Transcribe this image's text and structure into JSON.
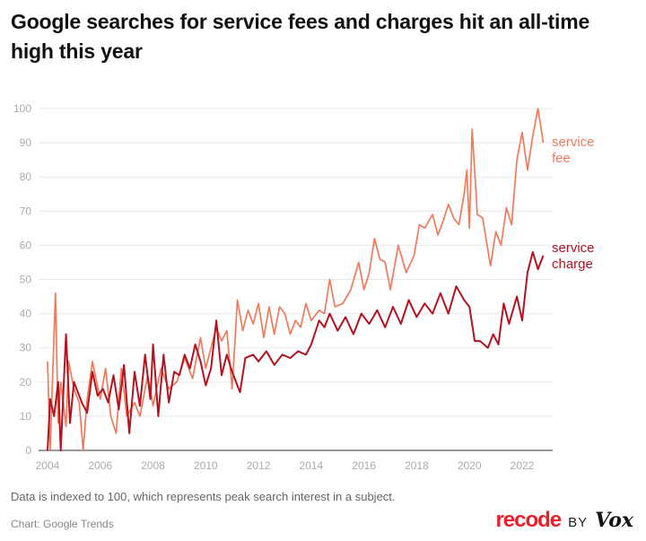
{
  "chart_data": {
    "type": "line",
    "title": "Google searches for service fees and charges hit an all-time high this year",
    "xlabel": "",
    "ylabel": "",
    "xlim": [
      2004,
      2022.8
    ],
    "ylim": [
      0,
      100
    ],
    "x_ticks": [
      "2004",
      "2006",
      "2008",
      "2010",
      "2012",
      "2014",
      "2016",
      "2018",
      "2020",
      "2022"
    ],
    "y_ticks": [
      "0",
      "10",
      "20",
      "30",
      "40",
      "50",
      "60",
      "70",
      "80",
      "90",
      "100"
    ],
    "grid": true,
    "legend": "direct labels at line ends (right)",
    "series": [
      {
        "name": "service fee",
        "label_lines": [
          "service",
          "fee"
        ],
        "color": "#f07a5c",
        "points": [
          [
            2004.0,
            26
          ],
          [
            2004.1,
            0
          ],
          [
            2004.3,
            46
          ],
          [
            2004.4,
            8
          ],
          [
            2004.5,
            20
          ],
          [
            2004.7,
            7
          ],
          [
            2004.8,
            26
          ],
          [
            2005.0,
            18
          ],
          [
            2005.2,
            14
          ],
          [
            2005.35,
            0
          ],
          [
            2005.5,
            15
          ],
          [
            2005.7,
            26
          ],
          [
            2006.0,
            15
          ],
          [
            2006.2,
            24
          ],
          [
            2006.4,
            10
          ],
          [
            2006.6,
            5
          ],
          [
            2006.8,
            24
          ],
          [
            2007.0,
            10
          ],
          [
            2007.3,
            14
          ],
          [
            2007.5,
            10
          ],
          [
            2007.8,
            22
          ],
          [
            2008.0,
            13
          ],
          [
            2008.3,
            24
          ],
          [
            2008.6,
            18
          ],
          [
            2008.9,
            20
          ],
          [
            2009.2,
            27
          ],
          [
            2009.5,
            21
          ],
          [
            2009.8,
            33
          ],
          [
            2010.0,
            24
          ],
          [
            2010.2,
            30
          ],
          [
            2010.4,
            36
          ],
          [
            2010.6,
            32
          ],
          [
            2010.8,
            35
          ],
          [
            2011.0,
            18
          ],
          [
            2011.2,
            44
          ],
          [
            2011.4,
            35
          ],
          [
            2011.6,
            41
          ],
          [
            2011.8,
            37
          ],
          [
            2012.0,
            43
          ],
          [
            2012.2,
            33
          ],
          [
            2012.4,
            42
          ],
          [
            2012.6,
            34
          ],
          [
            2012.8,
            42
          ],
          [
            2013.0,
            40
          ],
          [
            2013.2,
            34
          ],
          [
            2013.4,
            38
          ],
          [
            2013.6,
            36
          ],
          [
            2013.8,
            43
          ],
          [
            2014.0,
            38
          ],
          [
            2014.3,
            41
          ],
          [
            2014.5,
            40
          ],
          [
            2014.7,
            50
          ],
          [
            2014.9,
            42
          ],
          [
            2015.2,
            43
          ],
          [
            2015.5,
            47
          ],
          [
            2015.8,
            55
          ],
          [
            2016.0,
            47
          ],
          [
            2016.2,
            52
          ],
          [
            2016.4,
            62
          ],
          [
            2016.6,
            56
          ],
          [
            2016.8,
            55
          ],
          [
            2017.0,
            47
          ],
          [
            2017.3,
            60
          ],
          [
            2017.6,
            52
          ],
          [
            2017.9,
            57
          ],
          [
            2018.1,
            66
          ],
          [
            2018.3,
            65
          ],
          [
            2018.6,
            69
          ],
          [
            2018.8,
            63
          ],
          [
            2019.0,
            67
          ],
          [
            2019.2,
            72
          ],
          [
            2019.4,
            68
          ],
          [
            2019.6,
            66
          ],
          [
            2019.8,
            75
          ],
          [
            2019.9,
            82
          ],
          [
            2020.0,
            65
          ],
          [
            2020.1,
            94
          ],
          [
            2020.3,
            69
          ],
          [
            2020.5,
            68
          ],
          [
            2020.8,
            54
          ],
          [
            2021.0,
            64
          ],
          [
            2021.2,
            60
          ],
          [
            2021.4,
            71
          ],
          [
            2021.6,
            66
          ],
          [
            2021.8,
            85
          ],
          [
            2022.0,
            93
          ],
          [
            2022.2,
            82
          ],
          [
            2022.4,
            92
          ],
          [
            2022.6,
            100
          ],
          [
            2022.8,
            90
          ]
        ]
      },
      {
        "name": "service charge",
        "label_lines": [
          "service",
          "charge"
        ],
        "color": "#b3121f",
        "points": [
          [
            2004.0,
            0
          ],
          [
            2004.1,
            15
          ],
          [
            2004.25,
            10
          ],
          [
            2004.4,
            20
          ],
          [
            2004.5,
            0
          ],
          [
            2004.7,
            34
          ],
          [
            2004.85,
            8
          ],
          [
            2005.0,
            20
          ],
          [
            2005.3,
            14
          ],
          [
            2005.5,
            11
          ],
          [
            2005.7,
            23
          ],
          [
            2005.9,
            16
          ],
          [
            2006.1,
            18
          ],
          [
            2006.3,
            14
          ],
          [
            2006.5,
            22
          ],
          [
            2006.7,
            12
          ],
          [
            2006.9,
            25
          ],
          [
            2007.1,
            5
          ],
          [
            2007.3,
            23
          ],
          [
            2007.5,
            13
          ],
          [
            2007.7,
            28
          ],
          [
            2007.9,
            15
          ],
          [
            2008.0,
            31
          ],
          [
            2008.2,
            10
          ],
          [
            2008.4,
            28
          ],
          [
            2008.6,
            14
          ],
          [
            2008.8,
            23
          ],
          [
            2009.0,
            22
          ],
          [
            2009.2,
            28
          ],
          [
            2009.4,
            24
          ],
          [
            2009.6,
            31
          ],
          [
            2009.8,
            26
          ],
          [
            2010.0,
            19
          ],
          [
            2010.2,
            24
          ],
          [
            2010.4,
            38
          ],
          [
            2010.6,
            22
          ],
          [
            2010.8,
            28
          ],
          [
            2011.0,
            23
          ],
          [
            2011.3,
            17
          ],
          [
            2011.5,
            27
          ],
          [
            2011.8,
            28
          ],
          [
            2012.0,
            26
          ],
          [
            2012.3,
            29
          ],
          [
            2012.6,
            25
          ],
          [
            2012.9,
            28
          ],
          [
            2013.2,
            27
          ],
          [
            2013.5,
            29
          ],
          [
            2013.8,
            28
          ],
          [
            2014.0,
            31
          ],
          [
            2014.3,
            38
          ],
          [
            2014.5,
            36
          ],
          [
            2014.7,
            40
          ],
          [
            2015.0,
            35
          ],
          [
            2015.3,
            39
          ],
          [
            2015.6,
            34
          ],
          [
            2015.9,
            40
          ],
          [
            2016.2,
            37
          ],
          [
            2016.5,
            41
          ],
          [
            2016.8,
            36
          ],
          [
            2017.1,
            42
          ],
          [
            2017.4,
            37
          ],
          [
            2017.7,
            44
          ],
          [
            2018.0,
            39
          ],
          [
            2018.3,
            43
          ],
          [
            2018.6,
            40
          ],
          [
            2018.9,
            46
          ],
          [
            2019.2,
            40
          ],
          [
            2019.5,
            48
          ],
          [
            2019.8,
            44
          ],
          [
            2020.0,
            42
          ],
          [
            2020.2,
            32
          ],
          [
            2020.4,
            32
          ],
          [
            2020.7,
            30
          ],
          [
            2020.9,
            34
          ],
          [
            2021.1,
            31
          ],
          [
            2021.3,
            43
          ],
          [
            2021.5,
            37
          ],
          [
            2021.8,
            45
          ],
          [
            2022.0,
            38
          ],
          [
            2022.2,
            52
          ],
          [
            2022.4,
            58
          ],
          [
            2022.6,
            53
          ],
          [
            2022.8,
            57
          ]
        ]
      }
    ]
  },
  "footer": {
    "note": "Data is indexed to 100, which represents peak search interest in a subject.",
    "source": "Chart: Google Trends",
    "logo": {
      "recode": "recode",
      "by": "BY",
      "vox": "Vox"
    }
  }
}
